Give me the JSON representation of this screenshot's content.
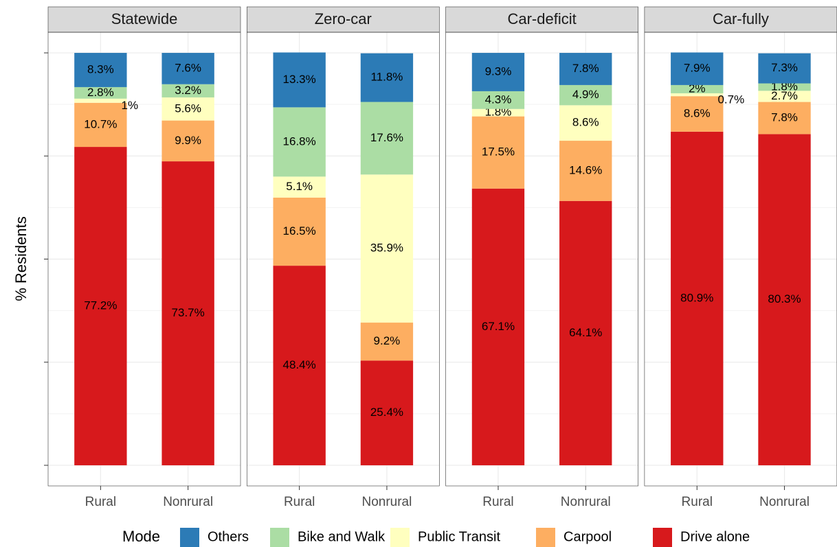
{
  "chart_data": {
    "type": "bar",
    "stacked": true,
    "ylabel": "% Residents",
    "legend_title": "Mode",
    "grid": true,
    "facets": [
      "Statewide",
      "Zero-car",
      "Car-deficit",
      "Car-fully"
    ],
    "categories": [
      "Rural",
      "Nonrural"
    ],
    "ylim": [
      -5,
      105
    ],
    "yticks": [
      0,
      25,
      50,
      75,
      100
    ],
    "series": [
      {
        "name": "Others",
        "color": "#2c7bb6",
        "values": [
          [
            8.3,
            7.6
          ],
          [
            13.3,
            11.8
          ],
          [
            9.3,
            7.8
          ],
          [
            7.9,
            7.3
          ]
        ],
        "value_labels": [
          [
            "8.3%",
            "7.6%"
          ],
          [
            "13.3%",
            "11.8%"
          ],
          [
            "9.3%",
            "7.8%"
          ],
          [
            "7.9%",
            "7.3%"
          ]
        ]
      },
      {
        "name": "Bike and Walk",
        "color": "#abdda4",
        "values": [
          [
            2.8,
            3.2
          ],
          [
            16.8,
            17.6
          ],
          [
            4.3,
            4.9
          ],
          [
            2,
            1.8
          ]
        ],
        "value_labels": [
          [
            "2.8%",
            "3.2%"
          ],
          [
            "16.8%",
            "17.6%"
          ],
          [
            "4.3%",
            "4.9%"
          ],
          [
            "2%",
            "1.8%"
          ]
        ]
      },
      {
        "name": "Public Transit",
        "color": "#ffffbf",
        "values": [
          [
            1,
            5.6
          ],
          [
            5.1,
            35.9
          ],
          [
            1.8,
            8.6
          ],
          [
            0.7,
            2.7
          ]
        ],
        "value_labels": [
          [
            "1%",
            "5.6%"
          ],
          [
            "5.1%",
            "35.9%"
          ],
          [
            "1.8%",
            "8.6%"
          ],
          [
            "0.7%",
            "2.7%"
          ]
        ]
      },
      {
        "name": "Carpool",
        "color": "#fdae61",
        "values": [
          [
            10.7,
            9.9
          ],
          [
            16.5,
            9.2
          ],
          [
            17.5,
            14.6
          ],
          [
            8.6,
            7.8
          ]
        ],
        "value_labels": [
          [
            "10.7%",
            "9.9%"
          ],
          [
            "16.5%",
            "9.2%"
          ],
          [
            "17.5%",
            "14.6%"
          ],
          [
            "8.6%",
            "7.8%"
          ]
        ]
      },
      {
        "name": "Drive alone",
        "color": "#d7191c",
        "values": [
          [
            77.2,
            73.7
          ],
          [
            48.4,
            25.4
          ],
          [
            67.1,
            64.1
          ],
          [
            80.9,
            80.3
          ]
        ],
        "value_labels": [
          [
            "77.2%",
            "73.7%"
          ],
          [
            "48.4%",
            "25.4%"
          ],
          [
            "67.1%",
            "64.1%"
          ],
          [
            "80.9%",
            "80.3%"
          ]
        ]
      }
    ]
  }
}
